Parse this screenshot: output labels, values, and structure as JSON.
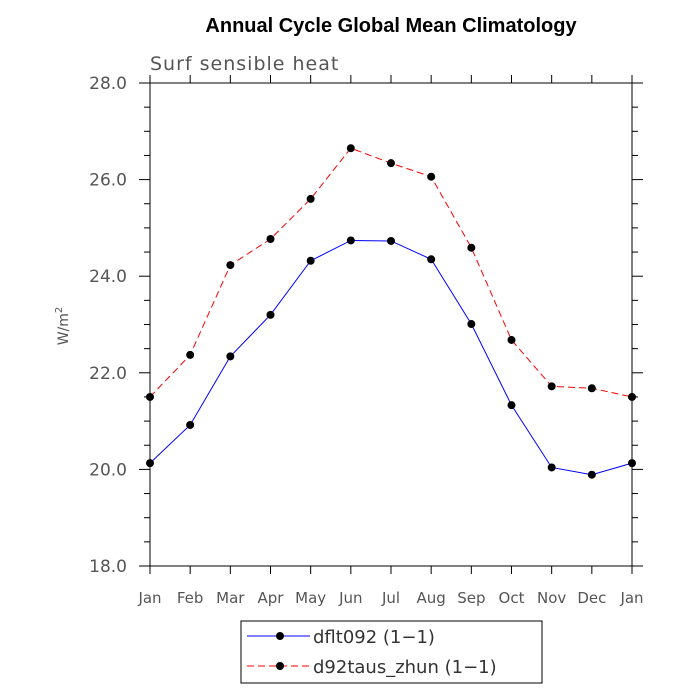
{
  "chart_data": {
    "type": "line",
    "title": "Annual Cycle Global Mean Climatology",
    "subtitle": "Surf sensible heat",
    "ylabel": "W/m",
    "ylabel_superscript": "2",
    "categories": [
      "Jan",
      "Feb",
      "Mar",
      "Apr",
      "May",
      "Jun",
      "Jul",
      "Aug",
      "Sep",
      "Oct",
      "Nov",
      "Dec",
      "Jan"
    ],
    "ylim": [
      18.0,
      28.0
    ],
    "yticks": [
      "18.0",
      "20.0",
      "22.0",
      "24.0",
      "26.0",
      "28.0"
    ],
    "series": [
      {
        "name": "dflt092 (1−1)",
        "color": "#0000ff",
        "dash": "solid",
        "values": [
          20.13,
          20.92,
          22.34,
          23.2,
          24.32,
          24.74,
          24.73,
          24.35,
          23.01,
          21.33,
          20.04,
          19.89,
          20.13
        ]
      },
      {
        "name": "d92taus_zhun (1−1)",
        "color": "#ff0000",
        "dash": "dashed",
        "values": [
          21.5,
          22.37,
          24.23,
          24.77,
          25.6,
          26.65,
          26.34,
          26.06,
          24.59,
          22.68,
          21.72,
          21.68,
          21.5
        ]
      }
    ]
  }
}
